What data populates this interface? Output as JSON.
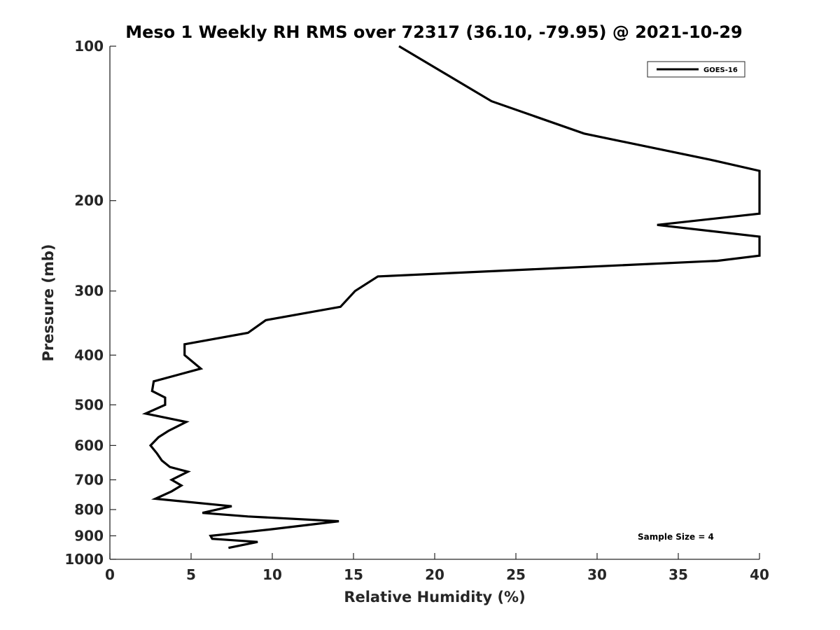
{
  "chart_data": {
    "type": "line",
    "title": "Meso 1 Weekly RH RMS over 72317 (36.10, -79.95) @ 2021-10-29",
    "xlabel": "Relative Humidity (%)",
    "ylabel": "Pressure (mb)",
    "xlim": [
      0,
      40
    ],
    "ylim": [
      100,
      1000
    ],
    "y_scale": "log",
    "y_reversed": true,
    "x_ticks": [
      0,
      5,
      10,
      15,
      20,
      25,
      30,
      35,
      40
    ],
    "y_ticks": [
      100,
      200,
      300,
      400,
      500,
      600,
      700,
      800,
      900,
      1000
    ],
    "grid": false,
    "legend_position": "top-right",
    "annotation": "Sample Size = 4",
    "series": [
      {
        "name": "GOES-16",
        "color": "#000000",
        "points": [
          [
            7.3,
            950
          ],
          [
            9.1,
            925
          ],
          [
            6.3,
            912
          ],
          [
            6.2,
            900
          ],
          [
            9.8,
            875
          ],
          [
            14.1,
            843
          ],
          [
            8.5,
            825
          ],
          [
            5.7,
            812
          ],
          [
            7.5,
            788
          ],
          [
            2.8,
            762
          ],
          [
            3.8,
            737
          ],
          [
            4.4,
            718
          ],
          [
            3.8,
            700
          ],
          [
            4.8,
            675
          ],
          [
            3.7,
            661
          ],
          [
            3.2,
            642
          ],
          [
            2.9,
            622
          ],
          [
            2.5,
            600
          ],
          [
            3.0,
            578
          ],
          [
            3.6,
            562
          ],
          [
            4.7,
            540
          ],
          [
            2.2,
            520
          ],
          [
            3.4,
            500
          ],
          [
            3.4,
            484
          ],
          [
            2.6,
            470
          ],
          [
            2.7,
            450
          ],
          [
            5.6,
            425
          ],
          [
            4.6,
            400
          ],
          [
            4.6,
            381
          ],
          [
            8.5,
            362
          ],
          [
            9.6,
            342
          ],
          [
            14.2,
            322
          ],
          [
            15.1,
            300
          ],
          [
            16.5,
            281
          ],
          [
            37.4,
            262
          ],
          [
            40.0,
            256
          ],
          [
            40.0,
            235
          ],
          [
            33.7,
            223
          ],
          [
            40.0,
            212
          ],
          [
            40.0,
            175
          ],
          [
            37.2,
            167
          ],
          [
            29.2,
            148
          ],
          [
            23.5,
            128
          ],
          [
            17.8,
            100
          ]
        ]
      }
    ]
  }
}
